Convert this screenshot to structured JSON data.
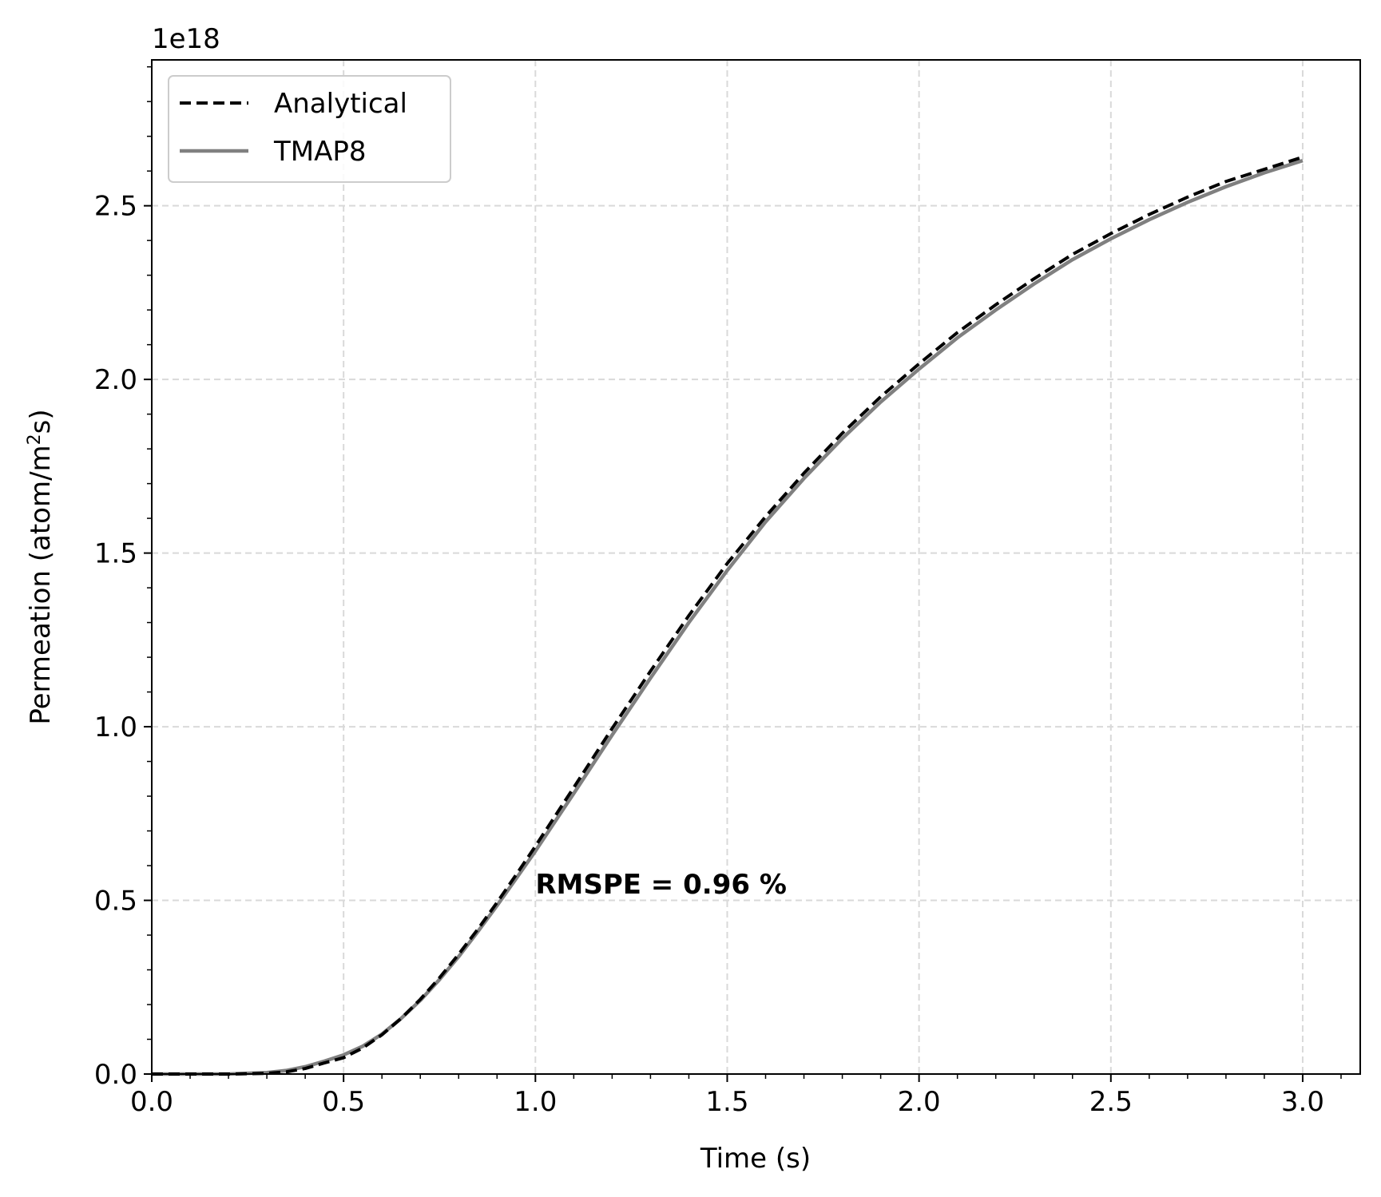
{
  "chart_data": {
    "type": "line",
    "xlabel": "Time (s)",
    "ylabel_main": "Permeation (atom/m",
    "ylabel_sup": "2",
    "ylabel_tail": "s)",
    "y_offset_text": "1e18",
    "xlim": [
      0.0,
      3.15
    ],
    "ylim": [
      0.0,
      2.92
    ],
    "x_ticks": [
      0.0,
      0.5,
      1.0,
      1.5,
      2.0,
      2.5,
      3.0
    ],
    "x_tick_labels": [
      "0.0",
      "0.5",
      "1.0",
      "1.5",
      "2.0",
      "2.5",
      "3.0"
    ],
    "y_ticks": [
      0.0,
      0.5,
      1.0,
      1.5,
      2.0,
      2.5
    ],
    "y_tick_labels": [
      "0.0",
      "0.5",
      "1.0",
      "1.5",
      "2.0",
      "2.5"
    ],
    "grid": true,
    "legend_position": "upper-left",
    "annotation": "RMSPE = 0.96 %",
    "annotation_at": [
      1.0,
      0.52
    ],
    "series": [
      {
        "name": "Analytical",
        "color": "#000000",
        "style": "dashed",
        "x": [
          0.0,
          0.1,
          0.2,
          0.3,
          0.35,
          0.4,
          0.45,
          0.5,
          0.55,
          0.6,
          0.65,
          0.7,
          0.75,
          0.8,
          0.85,
          0.9,
          0.95,
          1.0,
          1.1,
          1.2,
          1.3,
          1.4,
          1.5,
          1.6,
          1.7,
          1.8,
          1.9,
          2.0,
          2.1,
          2.2,
          2.3,
          2.4,
          2.5,
          2.6,
          2.7,
          2.8,
          2.9,
          3.0
        ],
        "y": [
          0.0,
          0.0,
          0.0,
          0.002,
          0.006,
          0.016,
          0.032,
          0.047,
          0.075,
          0.113,
          0.16,
          0.215,
          0.277,
          0.345,
          0.417,
          0.494,
          0.574,
          0.656,
          0.825,
          0.995,
          1.16,
          1.32,
          1.47,
          1.605,
          1.73,
          1.845,
          1.95,
          2.045,
          2.135,
          2.215,
          2.29,
          2.36,
          2.42,
          2.475,
          2.525,
          2.57,
          2.605,
          2.64
        ]
      },
      {
        "name": "TMAP8",
        "color": "#808080",
        "style": "solid",
        "x": [
          0.0,
          0.1,
          0.2,
          0.3,
          0.35,
          0.4,
          0.45,
          0.5,
          0.55,
          0.6,
          0.65,
          0.7,
          0.75,
          0.8,
          0.85,
          0.9,
          0.95,
          1.0,
          1.1,
          1.2,
          1.3,
          1.4,
          1.5,
          1.6,
          1.7,
          1.8,
          1.9,
          2.0,
          2.1,
          2.2,
          2.3,
          2.4,
          2.5,
          2.6,
          2.7,
          2.8,
          2.9,
          3.0
        ],
        "y": [
          0.0,
          0.0,
          0.0,
          0.004,
          0.01,
          0.021,
          0.037,
          0.055,
          0.08,
          0.115,
          0.16,
          0.212,
          0.272,
          0.338,
          0.41,
          0.485,
          0.563,
          0.642,
          0.808,
          0.976,
          1.14,
          1.3,
          1.45,
          1.59,
          1.715,
          1.83,
          1.935,
          2.03,
          2.12,
          2.2,
          2.275,
          2.345,
          2.405,
          2.46,
          2.51,
          2.555,
          2.595,
          2.63
        ]
      }
    ]
  }
}
